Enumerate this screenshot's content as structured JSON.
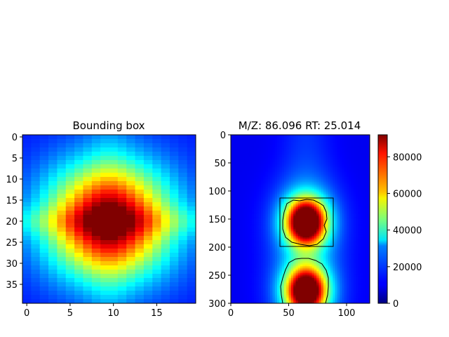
{
  "chart_data": [
    {
      "type": "heatmap",
      "title": "Bounding box",
      "colormap": "jet",
      "rows": 40,
      "cols": 20,
      "x_ticks": [
        0,
        5,
        10,
        15
      ],
      "y_ticks": [
        0,
        5,
        10,
        15,
        20,
        25,
        30,
        35
      ],
      "xlim": [
        -0.5,
        19.5
      ],
      "ylim": [
        39.5,
        -0.5
      ],
      "peak": {
        "x": 9.5,
        "y": 20
      },
      "grid": false
    },
    {
      "type": "heatmap",
      "title": "M/Z: 86.096  RT: 25.014",
      "colormap": "jet",
      "x_ticks": [
        0,
        50,
        100
      ],
      "y_ticks": [
        0,
        50,
        100,
        150,
        200,
        250,
        300
      ],
      "xlim": [
        0,
        120
      ],
      "ylim": [
        300,
        0
      ],
      "peaks": [
        {
          "x": 65,
          "y": 155,
          "intensity": 92000
        },
        {
          "x": 65,
          "y": 278,
          "intensity": 88000
        }
      ],
      "bounding_box": {
        "x0": 43,
        "x1": 88,
        "y0": 112,
        "y1": 198
      },
      "colorbar": {
        "range": [
          0,
          92000
        ],
        "ticks": [
          0,
          20000,
          40000,
          60000,
          80000
        ]
      },
      "grid": false
    }
  ]
}
